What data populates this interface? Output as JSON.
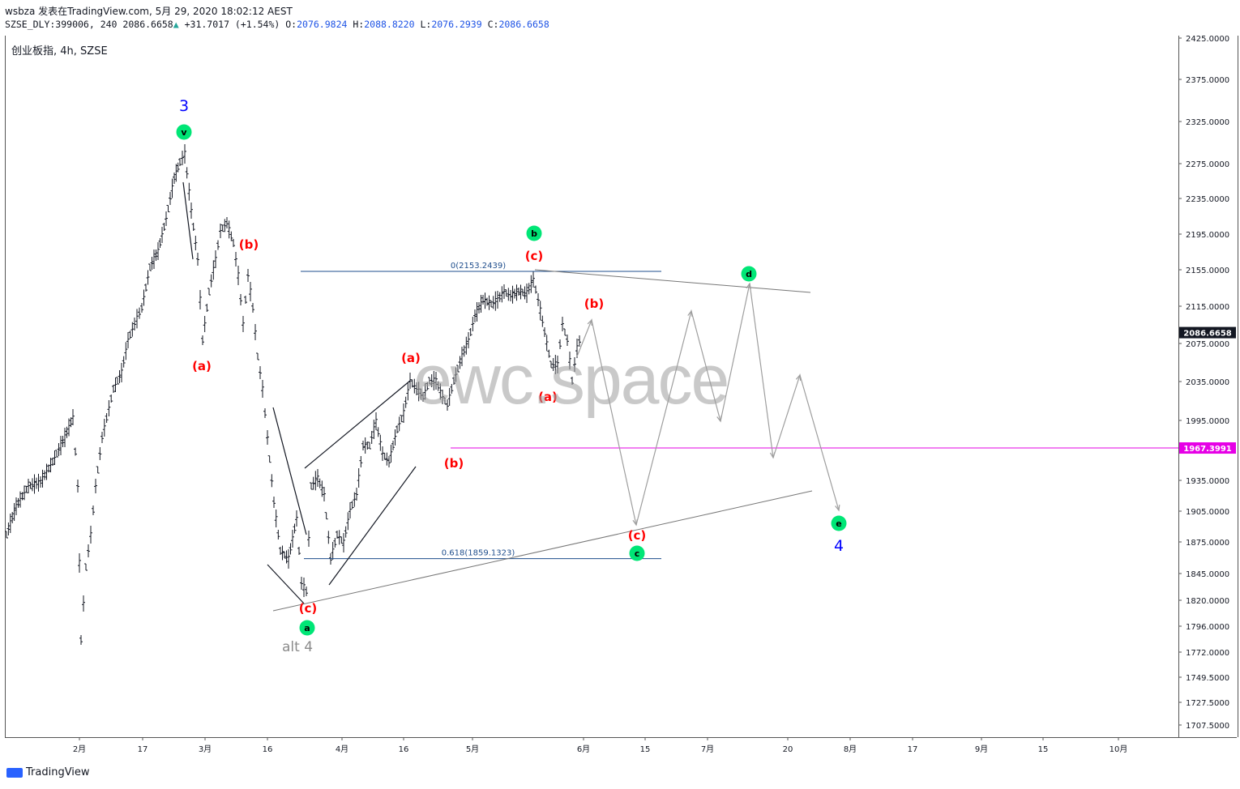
{
  "header": {
    "line1": "wsbza 发表在TradingView.com, 5月 29, 2020 18:02:12 AEST",
    "symbol": "SZSE_DLY:399006, 240",
    "last": "2086.6658",
    "change": "+31.7017 (+1.54%)",
    "o_label": "O:",
    "o": "2076.9824",
    "h_label": "H:",
    "h": "2088.8220",
    "l_label": "L:",
    "l": "2076.2939",
    "c_label": "C:",
    "c": "2086.6658"
  },
  "symbol_title": "创业板指, 4h, SZSE",
  "watermark": "ewc.space",
  "footer": {
    "brand": "TradingView"
  },
  "colors": {
    "bars": "#131722",
    "wave_red": "#ff0000",
    "wave_blue": "#0000ff",
    "circle_green": "#00e676",
    "fib_line": "#1e4d8c",
    "magenta": "#e600e6",
    "projection": "#9e9e9e",
    "price_tag_bg": "#131722"
  },
  "chart_data": {
    "type": "ohlc",
    "interval": "4h",
    "price_axis": {
      "ticks": [
        "2425.0000",
        "2375.0000",
        "2325.0000",
        "2275.0000",
        "2235.0000",
        "2195.0000",
        "2155.0000",
        "2115.0000",
        "2075.0000",
        "2035.0000",
        "1995.0000",
        "1935.0000",
        "1905.0000",
        "1875.0000",
        "1845.0000",
        "1820.0000",
        "1796.0000",
        "1772.0000",
        "1749.5000",
        "1727.5000",
        "1707.5000"
      ],
      "current_price": "2086.6658",
      "marked_level": "1967.3991"
    },
    "time_axis": {
      "ticks": [
        "2月",
        "17",
        "3月",
        "16",
        "4月",
        "16",
        "5月",
        "6月",
        "15",
        "7月",
        "20",
        "8月",
        "17",
        "9月",
        "15",
        "10月"
      ]
    },
    "fib_levels": [
      {
        "label": "0(2153.2439)",
        "price": 2153.2439
      },
      {
        "label": "0.618(1859.1323)",
        "price": 1859.1323
      }
    ],
    "wave_labels_red": [
      "(a)",
      "(b)",
      "(c)",
      "(a)",
      "(b)",
      "(c)",
      "(a)",
      "(b)",
      "(c)"
    ],
    "wave_circles": [
      "v",
      "a",
      "b",
      "c",
      "d",
      "e"
    ],
    "degree_labels": [
      "3",
      "4"
    ],
    "alt_label": "alt 4"
  }
}
